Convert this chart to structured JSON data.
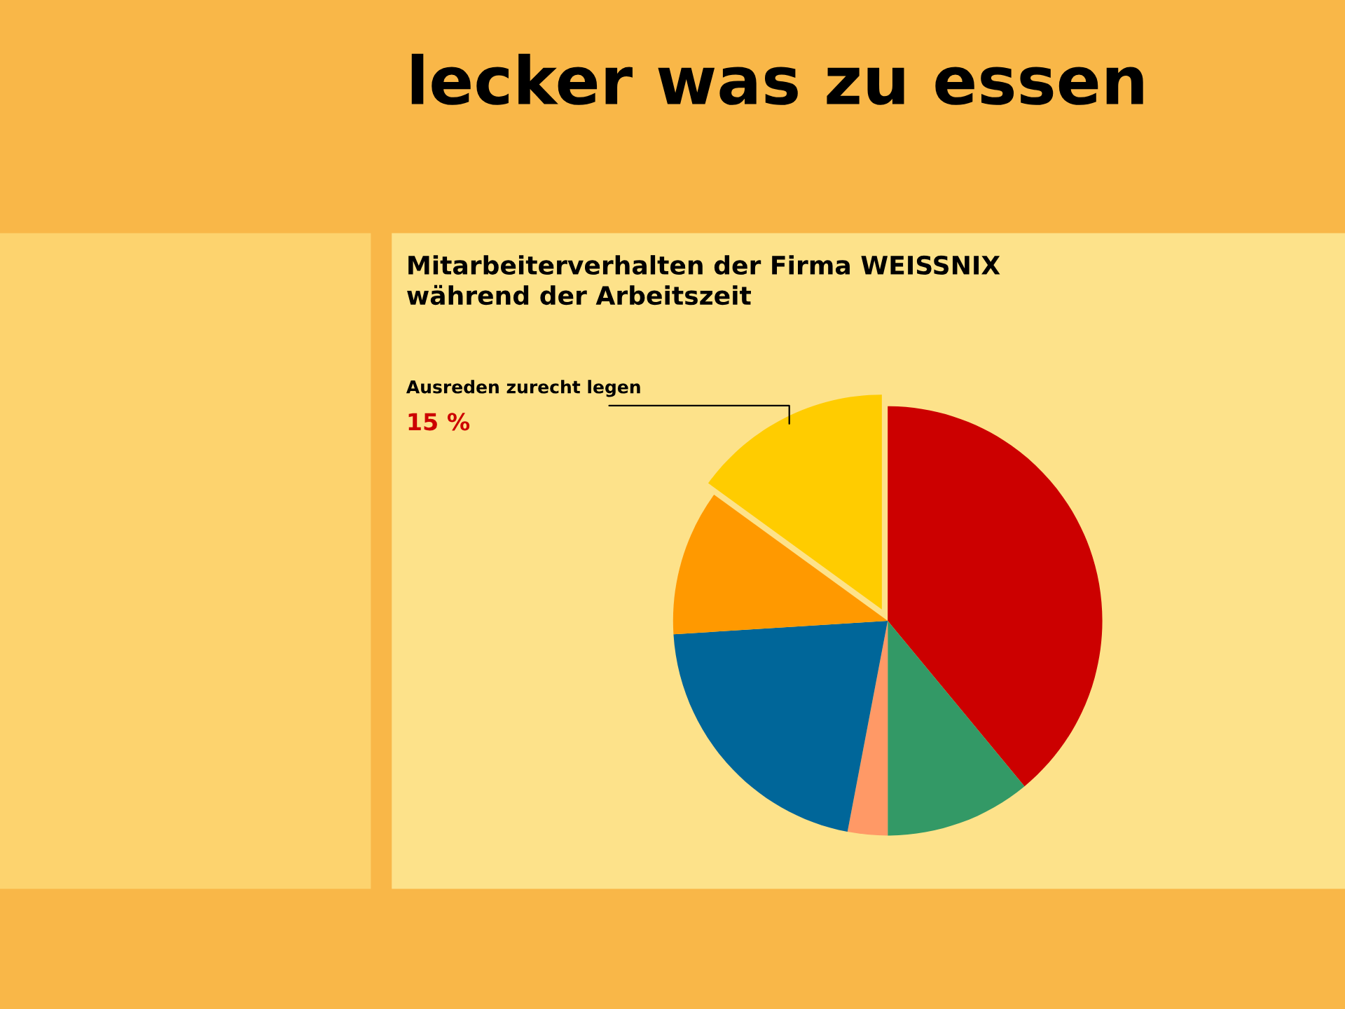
{
  "chart_data": {
    "type": "pie",
    "title": "lecker was zu essen",
    "subtitle": "Mitarbeiterverhalten der Firma WEISSNIX\nwährend der Arbeitszeit",
    "categories": [
      null,
      null,
      null,
      null,
      null,
      "Ausreden zurecht legen"
    ],
    "values": [
      39,
      11,
      3,
      21,
      11,
      15
    ],
    "colors": [
      "#cc0000",
      "#339966",
      "#ff9966",
      "#006699",
      "#ff9900",
      "#ffcc00"
    ],
    "value_labels": [
      null,
      null,
      null,
      null,
      null,
      "15 %"
    ],
    "legend": false
  }
}
